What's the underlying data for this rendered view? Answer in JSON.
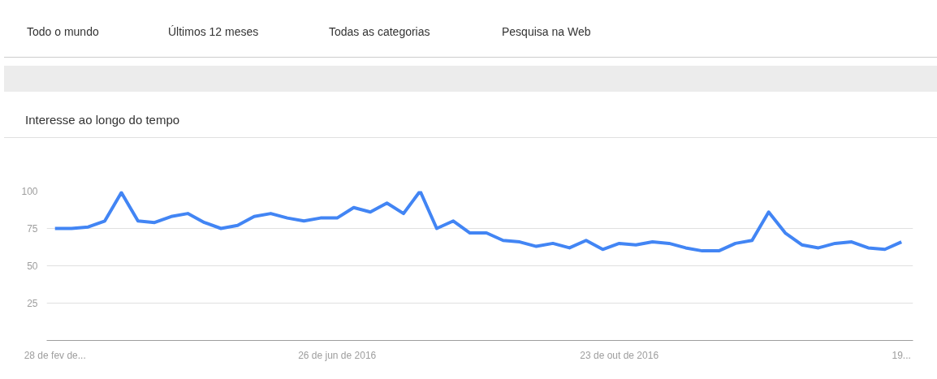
{
  "chart_data": {
    "type": "line",
    "title": "Interesse ao longo do tempo",
    "annotations": [
      "Todo o mundo",
      "Últimos 12 meses",
      "Todas as categorias",
      "Pesquisa na Web"
    ],
    "categories": [
      "28 de fev de...",
      null,
      null,
      null,
      null,
      null,
      null,
      null,
      null,
      null,
      null,
      null,
      null,
      null,
      null,
      null,
      null,
      "26 de jun de 2016",
      null,
      null,
      null,
      null,
      null,
      null,
      null,
      null,
      null,
      null,
      null,
      null,
      null,
      null,
      null,
      null,
      "23 de out de 2016",
      null,
      null,
      null,
      null,
      null,
      null,
      null,
      null,
      null,
      null,
      null,
      null,
      null,
      null,
      null,
      null,
      "19..."
    ],
    "series": [
      {
        "color": "#4285f4",
        "values": [
          75,
          75,
          76,
          80,
          99,
          80,
          79,
          83,
          85,
          79,
          75,
          77,
          83,
          85,
          82,
          80,
          82,
          82,
          89,
          86,
          92,
          85,
          100,
          75,
          80,
          72,
          72,
          67,
          66,
          63,
          65,
          62,
          67,
          61,
          65,
          64,
          66,
          65,
          62,
          60,
          60,
          65,
          67,
          86,
          72,
          64,
          62,
          65,
          66,
          62,
          61,
          66
        ]
      }
    ],
    "ylim": [
      0,
      100
    ],
    "yticks": [
      25,
      50,
      75,
      100
    ],
    "grid": "y"
  }
}
